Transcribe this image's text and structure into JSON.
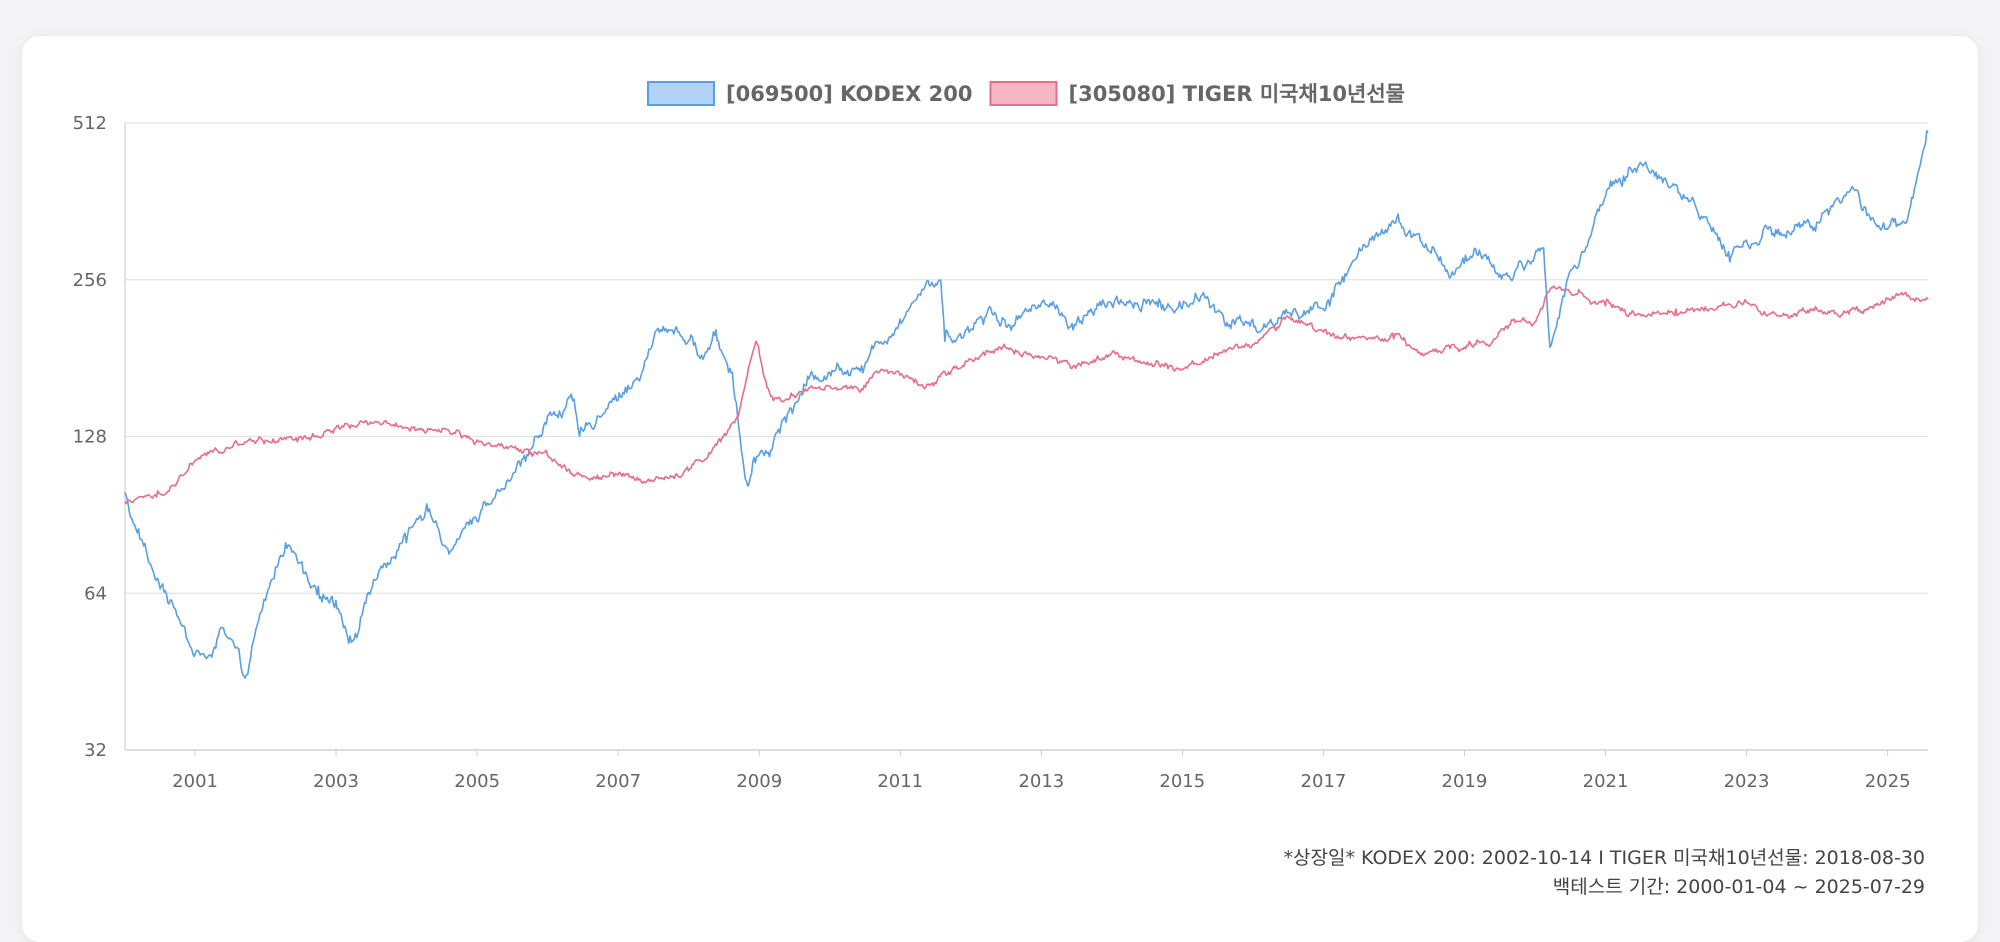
{
  "chart_data": {
    "type": "line",
    "title": "",
    "xlabel": "",
    "ylabel": "",
    "y_scale": "log2",
    "ylim": [
      32,
      512
    ],
    "xlim": [
      "2000-01-04",
      "2025-07-29"
    ],
    "y_ticks": [
      "32",
      "64",
      "128",
      "256",
      "512"
    ],
    "x_ticks": [
      "2001",
      "2003",
      "2005",
      "2007",
      "2009",
      "2011",
      "2013",
      "2015",
      "2017",
      "2019",
      "2021",
      "2023",
      "2025"
    ],
    "grid": "horizontal",
    "legend_position": "top-center",
    "series": [
      {
        "name": "[069500] KODEX 200",
        "color": "#5a9fdf",
        "fill": "#afd2f5",
        "points": [
          [
            "2000-01-04",
            100
          ],
          [
            "2000-03-01",
            85
          ],
          [
            "2000-06-01",
            70
          ],
          [
            "2000-09-15",
            60
          ],
          [
            "2000-12-20",
            49
          ],
          [
            "2001-03-01",
            48
          ],
          [
            "2001-05-15",
            55
          ],
          [
            "2001-07-15",
            52
          ],
          [
            "2001-09-17",
            44
          ],
          [
            "2001-10-15",
            48
          ],
          [
            "2001-12-31",
            62
          ],
          [
            "2002-04-15",
            80
          ],
          [
            "2002-07-15",
            70
          ],
          [
            "2002-10-01",
            66
          ],
          [
            "2002-12-31",
            62
          ],
          [
            "2003-03-15",
            53
          ],
          [
            "2003-05-15",
            58
          ],
          [
            "2003-07-15",
            68
          ],
          [
            "2003-10-15",
            75
          ],
          [
            "2003-12-31",
            80
          ],
          [
            "2004-04-15",
            95
          ],
          [
            "2004-06-15",
            85
          ],
          [
            "2004-08-15",
            77
          ],
          [
            "2004-12-31",
            88
          ],
          [
            "2005-03-15",
            95
          ],
          [
            "2005-06-15",
            105
          ],
          [
            "2005-09-15",
            118
          ],
          [
            "2005-12-31",
            140
          ],
          [
            "2006-05-10",
            150
          ],
          [
            "2006-06-15",
            128
          ],
          [
            "2006-09-15",
            140
          ],
          [
            "2006-12-31",
            150
          ],
          [
            "2007-04-15",
            165
          ],
          [
            "2007-07-20",
            205
          ],
          [
            "2007-10-30",
            208
          ],
          [
            "2007-12-31",
            195
          ],
          [
            "2008-03-15",
            180
          ],
          [
            "2008-05-15",
            200
          ],
          [
            "2008-08-15",
            170
          ],
          [
            "2008-10-27",
            105
          ],
          [
            "2008-12-31",
            118
          ],
          [
            "2009-03-15",
            125
          ],
          [
            "2009-06-15",
            145
          ],
          [
            "2009-09-15",
            165
          ],
          [
            "2009-12-31",
            170
          ],
          [
            "2010-06-15",
            175
          ],
          [
            "2010-12-31",
            215
          ],
          [
            "2011-04-30",
            245
          ],
          [
            "2011-07-30",
            255
          ],
          [
            "2011-08-20",
            195
          ],
          [
            "2011-12-31",
            205
          ],
          [
            "2012-04-15",
            225
          ],
          [
            "2012-07-15",
            210
          ],
          [
            "2012-12-31",
            230
          ],
          [
            "2013-03-15",
            225
          ],
          [
            "2013-06-15",
            205
          ],
          [
            "2013-09-15",
            225
          ],
          [
            "2013-12-31",
            230
          ],
          [
            "2014-06-15",
            235
          ],
          [
            "2014-12-31",
            225
          ],
          [
            "2015-04-20",
            242
          ],
          [
            "2015-08-20",
            212
          ],
          [
            "2015-12-31",
            215
          ],
          [
            "2016-02-15",
            205
          ],
          [
            "2016-06-15",
            220
          ],
          [
            "2016-12-31",
            225
          ],
          [
            "2017-06-15",
            280
          ],
          [
            "2017-10-30",
            320
          ],
          [
            "2018-01-29",
            330
          ],
          [
            "2018-06-15",
            300
          ],
          [
            "2018-10-30",
            265
          ],
          [
            "2018-12-31",
            275
          ],
          [
            "2019-04-15",
            285
          ],
          [
            "2019-08-15",
            260
          ],
          [
            "2019-12-31",
            285
          ],
          [
            "2020-02-15",
            295
          ],
          [
            "2020-03-19",
            190
          ],
          [
            "2020-06-15",
            255
          ],
          [
            "2020-09-15",
            290
          ],
          [
            "2020-12-31",
            370
          ],
          [
            "2021-06-30",
            430
          ],
          [
            "2021-12-31",
            390
          ],
          [
            "2022-06-15",
            330
          ],
          [
            "2022-09-30",
            290
          ],
          [
            "2022-12-31",
            305
          ],
          [
            "2023-06-15",
            320
          ],
          [
            "2023-12-31",
            330
          ],
          [
            "2024-03-15",
            355
          ],
          [
            "2024-07-15",
            380
          ],
          [
            "2024-09-15",
            340
          ],
          [
            "2024-12-31",
            320
          ],
          [
            "2025-04-09",
            330
          ],
          [
            "2025-06-15",
            420
          ],
          [
            "2025-07-29",
            490
          ]
        ]
      },
      {
        "name": "[305080] TIGER 미국채10년선물",
        "color": "#e56e88",
        "fill": "#f7b6c3",
        "points": [
          [
            "2000-01-04",
            96
          ],
          [
            "2000-06-15",
            98
          ],
          [
            "2000-09-15",
            103
          ],
          [
            "2000-12-31",
            115
          ],
          [
            "2001-06-15",
            122
          ],
          [
            "2001-12-31",
            126
          ],
          [
            "2002-06-15",
            125
          ],
          [
            "2002-12-31",
            133
          ],
          [
            "2003-06-15",
            135
          ],
          [
            "2003-12-31",
            133
          ],
          [
            "2004-06-15",
            132
          ],
          [
            "2004-12-31",
            126
          ],
          [
            "2005-06-15",
            122
          ],
          [
            "2005-12-31",
            118
          ],
          [
            "2006-06-15",
            108
          ],
          [
            "2006-12-31",
            108
          ],
          [
            "2007-06-15",
            105
          ],
          [
            "2007-12-31",
            110
          ],
          [
            "2008-06-15",
            125
          ],
          [
            "2008-09-15",
            140
          ],
          [
            "2008-12-15",
            195
          ],
          [
            "2009-01-15",
            175
          ],
          [
            "2009-03-15",
            150
          ],
          [
            "2009-06-15",
            155
          ],
          [
            "2009-12-31",
            160
          ],
          [
            "2010-06-15",
            158
          ],
          [
            "2010-09-15",
            170
          ],
          [
            "2010-12-31",
            168
          ],
          [
            "2011-06-15",
            162
          ],
          [
            "2011-12-31",
            180
          ],
          [
            "2012-06-15",
            190
          ],
          [
            "2012-12-31",
            182
          ],
          [
            "2013-06-15",
            175
          ],
          [
            "2013-12-31",
            185
          ],
          [
            "2014-06-15",
            178
          ],
          [
            "2014-12-31",
            172
          ],
          [
            "2015-06-15",
            185
          ],
          [
            "2015-12-31",
            192
          ],
          [
            "2016-06-15",
            215
          ],
          [
            "2016-09-15",
            212
          ],
          [
            "2016-12-31",
            203
          ],
          [
            "2017-06-15",
            198
          ],
          [
            "2017-12-31",
            197
          ],
          [
            "2018-06-15",
            185
          ],
          [
            "2018-12-31",
            190
          ],
          [
            "2019-06-15",
            198
          ],
          [
            "2019-09-15",
            215
          ],
          [
            "2019-12-31",
            212
          ],
          [
            "2020-03-19",
            245
          ],
          [
            "2020-08-15",
            245
          ],
          [
            "2020-12-31",
            228
          ],
          [
            "2021-06-15",
            220
          ],
          [
            "2021-12-31",
            225
          ],
          [
            "2022-06-15",
            223
          ],
          [
            "2022-12-31",
            232
          ],
          [
            "2023-06-15",
            218
          ],
          [
            "2023-12-31",
            225
          ],
          [
            "2024-06-15",
            220
          ],
          [
            "2024-12-31",
            235
          ],
          [
            "2025-03-15",
            242
          ],
          [
            "2025-07-29",
            235
          ]
        ]
      }
    ]
  },
  "footnote": {
    "line1": "*상장일* KODEX 200: 2002-10-14 I TIGER 미국채10년선물: 2018-08-30",
    "line2": "백테스트 기간: 2000-01-04 ~ 2025-07-29"
  }
}
